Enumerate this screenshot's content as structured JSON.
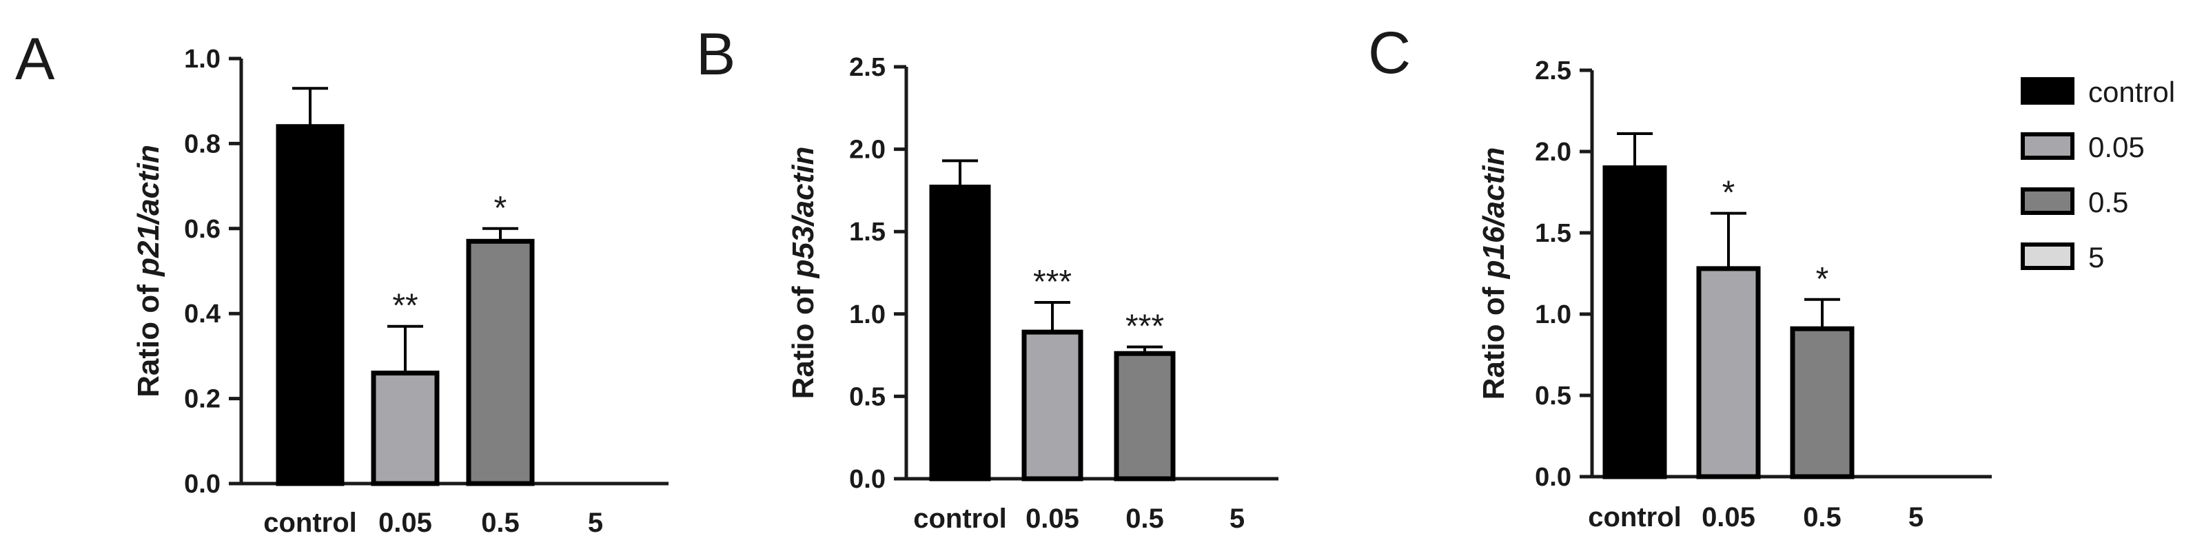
{
  "chart_data": [
    {
      "panel": "A",
      "type": "bar",
      "ylabel_prefix": "Ratio of ",
      "ylabel_gene": "p21/actin",
      "ylim": [
        0,
        1.0
      ],
      "yticks": [
        "0.0",
        "0.2",
        "0.4",
        "0.6",
        "0.8",
        "1.0"
      ],
      "categories": [
        "control",
        "0.05",
        "0.5",
        "5"
      ],
      "values": [
        0.84,
        0.26,
        0.57,
        0
      ],
      "errors": [
        0.09,
        0.11,
        0.03,
        0
      ],
      "significance": [
        "",
        "**",
        "*",
        ""
      ]
    },
    {
      "panel": "B",
      "type": "bar",
      "ylabel_prefix": "Ratio of ",
      "ylabel_gene": "p53/actin",
      "ylim": [
        0,
        2.5
      ],
      "yticks": [
        "0.0",
        "0.5",
        "1.0",
        "1.5",
        "2.0",
        "2.5"
      ],
      "categories": [
        "control",
        "0.05",
        "0.5",
        "5"
      ],
      "values": [
        1.77,
        0.89,
        0.76,
        0
      ],
      "errors": [
        0.16,
        0.18,
        0.04,
        0
      ],
      "significance": [
        "",
        "***",
        "***",
        ""
      ]
    },
    {
      "panel": "C",
      "type": "bar",
      "ylabel_prefix": "Ratio of ",
      "ylabel_gene": "p16/actin",
      "ylim": [
        0,
        2.5
      ],
      "yticks": [
        "0.0",
        "0.5",
        "1.0",
        "1.5",
        "2.0",
        "2.5"
      ],
      "categories": [
        "control",
        "0.05",
        "0.5",
        "5"
      ],
      "values": [
        1.9,
        1.28,
        0.91,
        0
      ],
      "errors": [
        0.21,
        0.34,
        0.18,
        0
      ],
      "significance": [
        "",
        "*",
        "*",
        ""
      ]
    }
  ],
  "legend": [
    {
      "label": "control",
      "color": "#000000"
    },
    {
      "label": "0.05",
      "color": "#a6a6ab"
    },
    {
      "label": "0.5",
      "color": "#808080"
    },
    {
      "label": "5",
      "color": "#d9d9d9"
    }
  ],
  "colors": {
    "axis": "#1a1a1a",
    "outline": "#000000",
    "bars": [
      "#000000",
      "#a6a6ab",
      "#808080",
      "#d9d9d9"
    ]
  }
}
